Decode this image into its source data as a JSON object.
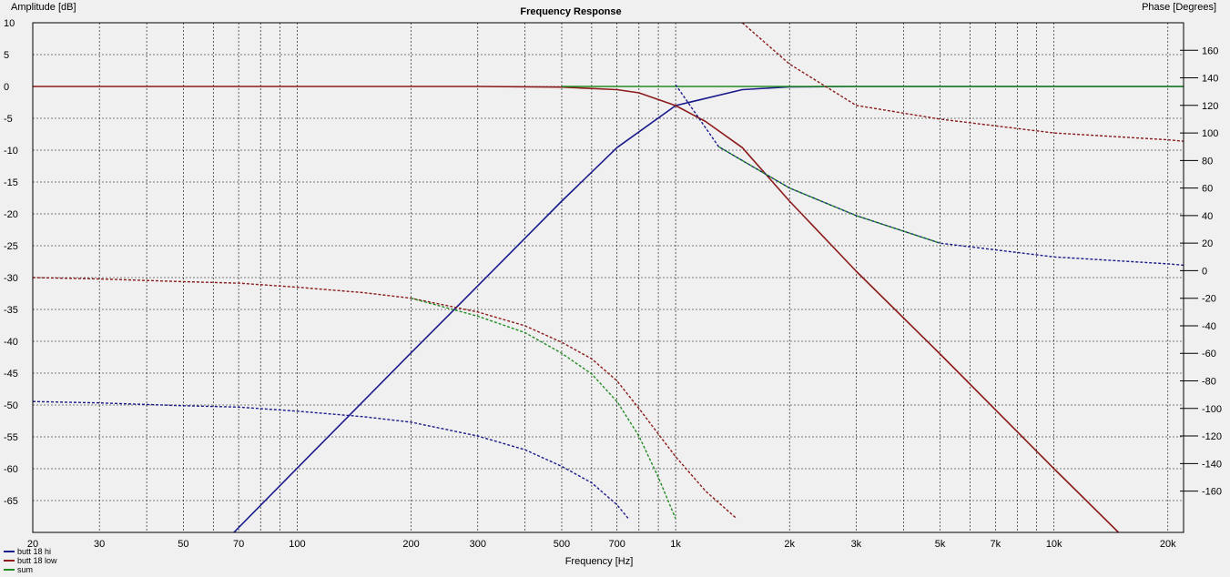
{
  "chart_data": {
    "type": "line",
    "title": "Frequency Response",
    "xlabel": "Frequency [Hz]",
    "ylabel_left": "Amplitude [dB]",
    "ylabel_right": "Phase [Degrees]",
    "x_scale": "log",
    "xlim": [
      20,
      22000
    ],
    "ylim_left": [
      -70,
      10
    ],
    "ylim_right": [
      -190,
      180
    ],
    "grid": true,
    "legend_position": "bottom-left",
    "x_ticks": [
      {
        "value": 20,
        "label": "20"
      },
      {
        "value": 30,
        "label": "30"
      },
      {
        "value": 50,
        "label": "50"
      },
      {
        "value": 70,
        "label": "70"
      },
      {
        "value": 100,
        "label": "100"
      },
      {
        "value": 200,
        "label": "200"
      },
      {
        "value": 300,
        "label": "300"
      },
      {
        "value": 500,
        "label": "500"
      },
      {
        "value": 700,
        "label": "700"
      },
      {
        "value": 1000,
        "label": "1k"
      },
      {
        "value": 2000,
        "label": "2k"
      },
      {
        "value": 3000,
        "label": "3k"
      },
      {
        "value": 5000,
        "label": "5k"
      },
      {
        "value": 7000,
        "label": "7k"
      },
      {
        "value": 10000,
        "label": "10k"
      },
      {
        "value": 20000,
        "label": "20k"
      }
    ],
    "y_ticks_left": [
      10,
      5,
      0,
      -5,
      -10,
      -15,
      -20,
      -25,
      -30,
      -35,
      -40,
      -45,
      -50,
      -55,
      -60,
      -65
    ],
    "y_ticks_right": [
      160,
      140,
      120,
      100,
      80,
      60,
      40,
      20,
      0,
      -20,
      -40,
      -60,
      -80,
      -100,
      -120,
      -140,
      -160
    ],
    "series": [
      {
        "name": "butt 18 hi",
        "color": "#1a1a8c",
        "kind": "amplitude",
        "style": "solid",
        "x": [
          68,
          100,
          200,
          300,
          500,
          700,
          1000,
          1500,
          2000,
          3000,
          5000,
          10000,
          20000,
          22000
        ],
        "y": [
          -70,
          -59.9,
          -41.8,
          -31.3,
          -18.0,
          -9.6,
          -3.0,
          -0.5,
          -0.07,
          0,
          0,
          0,
          0,
          0
        ]
      },
      {
        "name": "butt 18 low",
        "color": "#8b1a1a",
        "kind": "amplitude",
        "style": "solid",
        "x": [
          20,
          100,
          300,
          500,
          700,
          800,
          1000,
          1200,
          1500,
          2000,
          3000,
          5000,
          10000,
          14800
        ],
        "y": [
          0,
          0,
          0,
          -0.1,
          -0.5,
          -1.0,
          -3.0,
          -5.5,
          -9.6,
          -18.0,
          -29.0,
          -42.0,
          -60.0,
          -70.0
        ]
      },
      {
        "name": "sum",
        "color": "#228b22",
        "kind": "amplitude",
        "style": "solid",
        "x": [
          500,
          700,
          1000,
          2000,
          22000
        ],
        "y": [
          0,
          0,
          0,
          0,
          0
        ]
      },
      {
        "name": "butt 18 hi",
        "color": "#1a1a8c",
        "kind": "phase",
        "style": "dashed",
        "x": [
          20,
          30,
          50,
          70,
          100,
          150,
          200,
          300,
          400,
          500,
          600,
          700,
          750,
          1000,
          1300,
          1500,
          2000,
          3000,
          5000,
          10000,
          20000,
          22000
        ],
        "y": [
          -95,
          -96,
          -98,
          -99,
          -102,
          -106,
          -110,
          -120,
          -130,
          -142,
          -154,
          -170,
          -180,
          135,
          90,
          80,
          60,
          40,
          20,
          10,
          5,
          4
        ]
      },
      {
        "name": "butt 18 low",
        "color": "#8b1a1a",
        "kind": "phase",
        "style": "dashed",
        "x": [
          20,
          30,
          50,
          70,
          100,
          150,
          200,
          300,
          400,
          500,
          600,
          700,
          800,
          1000,
          1200,
          1450,
          1500,
          2000,
          3000,
          5000,
          10000,
          20000,
          22000
        ],
        "y": [
          -5,
          -6,
          -8,
          -9,
          -12,
          -16,
          -20,
          -30,
          -40,
          -52,
          -64,
          -80,
          -100,
          -135,
          -160,
          -180,
          180,
          150,
          120,
          110,
          100,
          95,
          94
        ]
      },
      {
        "name": "sum",
        "color": "#228b22",
        "kind": "phase",
        "style": "dashed",
        "x": [
          200,
          300,
          400,
          500,
          600,
          700,
          800,
          900,
          1000,
          1300,
          1500,
          2000,
          3000,
          5000
        ],
        "y": [
          -20,
          -33,
          -45,
          -60,
          -75,
          -95,
          -120,
          -150,
          -180,
          90,
          80,
          60,
          40,
          20
        ]
      }
    ],
    "legend": [
      {
        "label": "butt 18 hi",
        "color": "#1a1a8c"
      },
      {
        "label": "butt 18 low",
        "color": "#8b1a1a"
      },
      {
        "label": "sum",
        "color": "#228b22"
      }
    ]
  }
}
